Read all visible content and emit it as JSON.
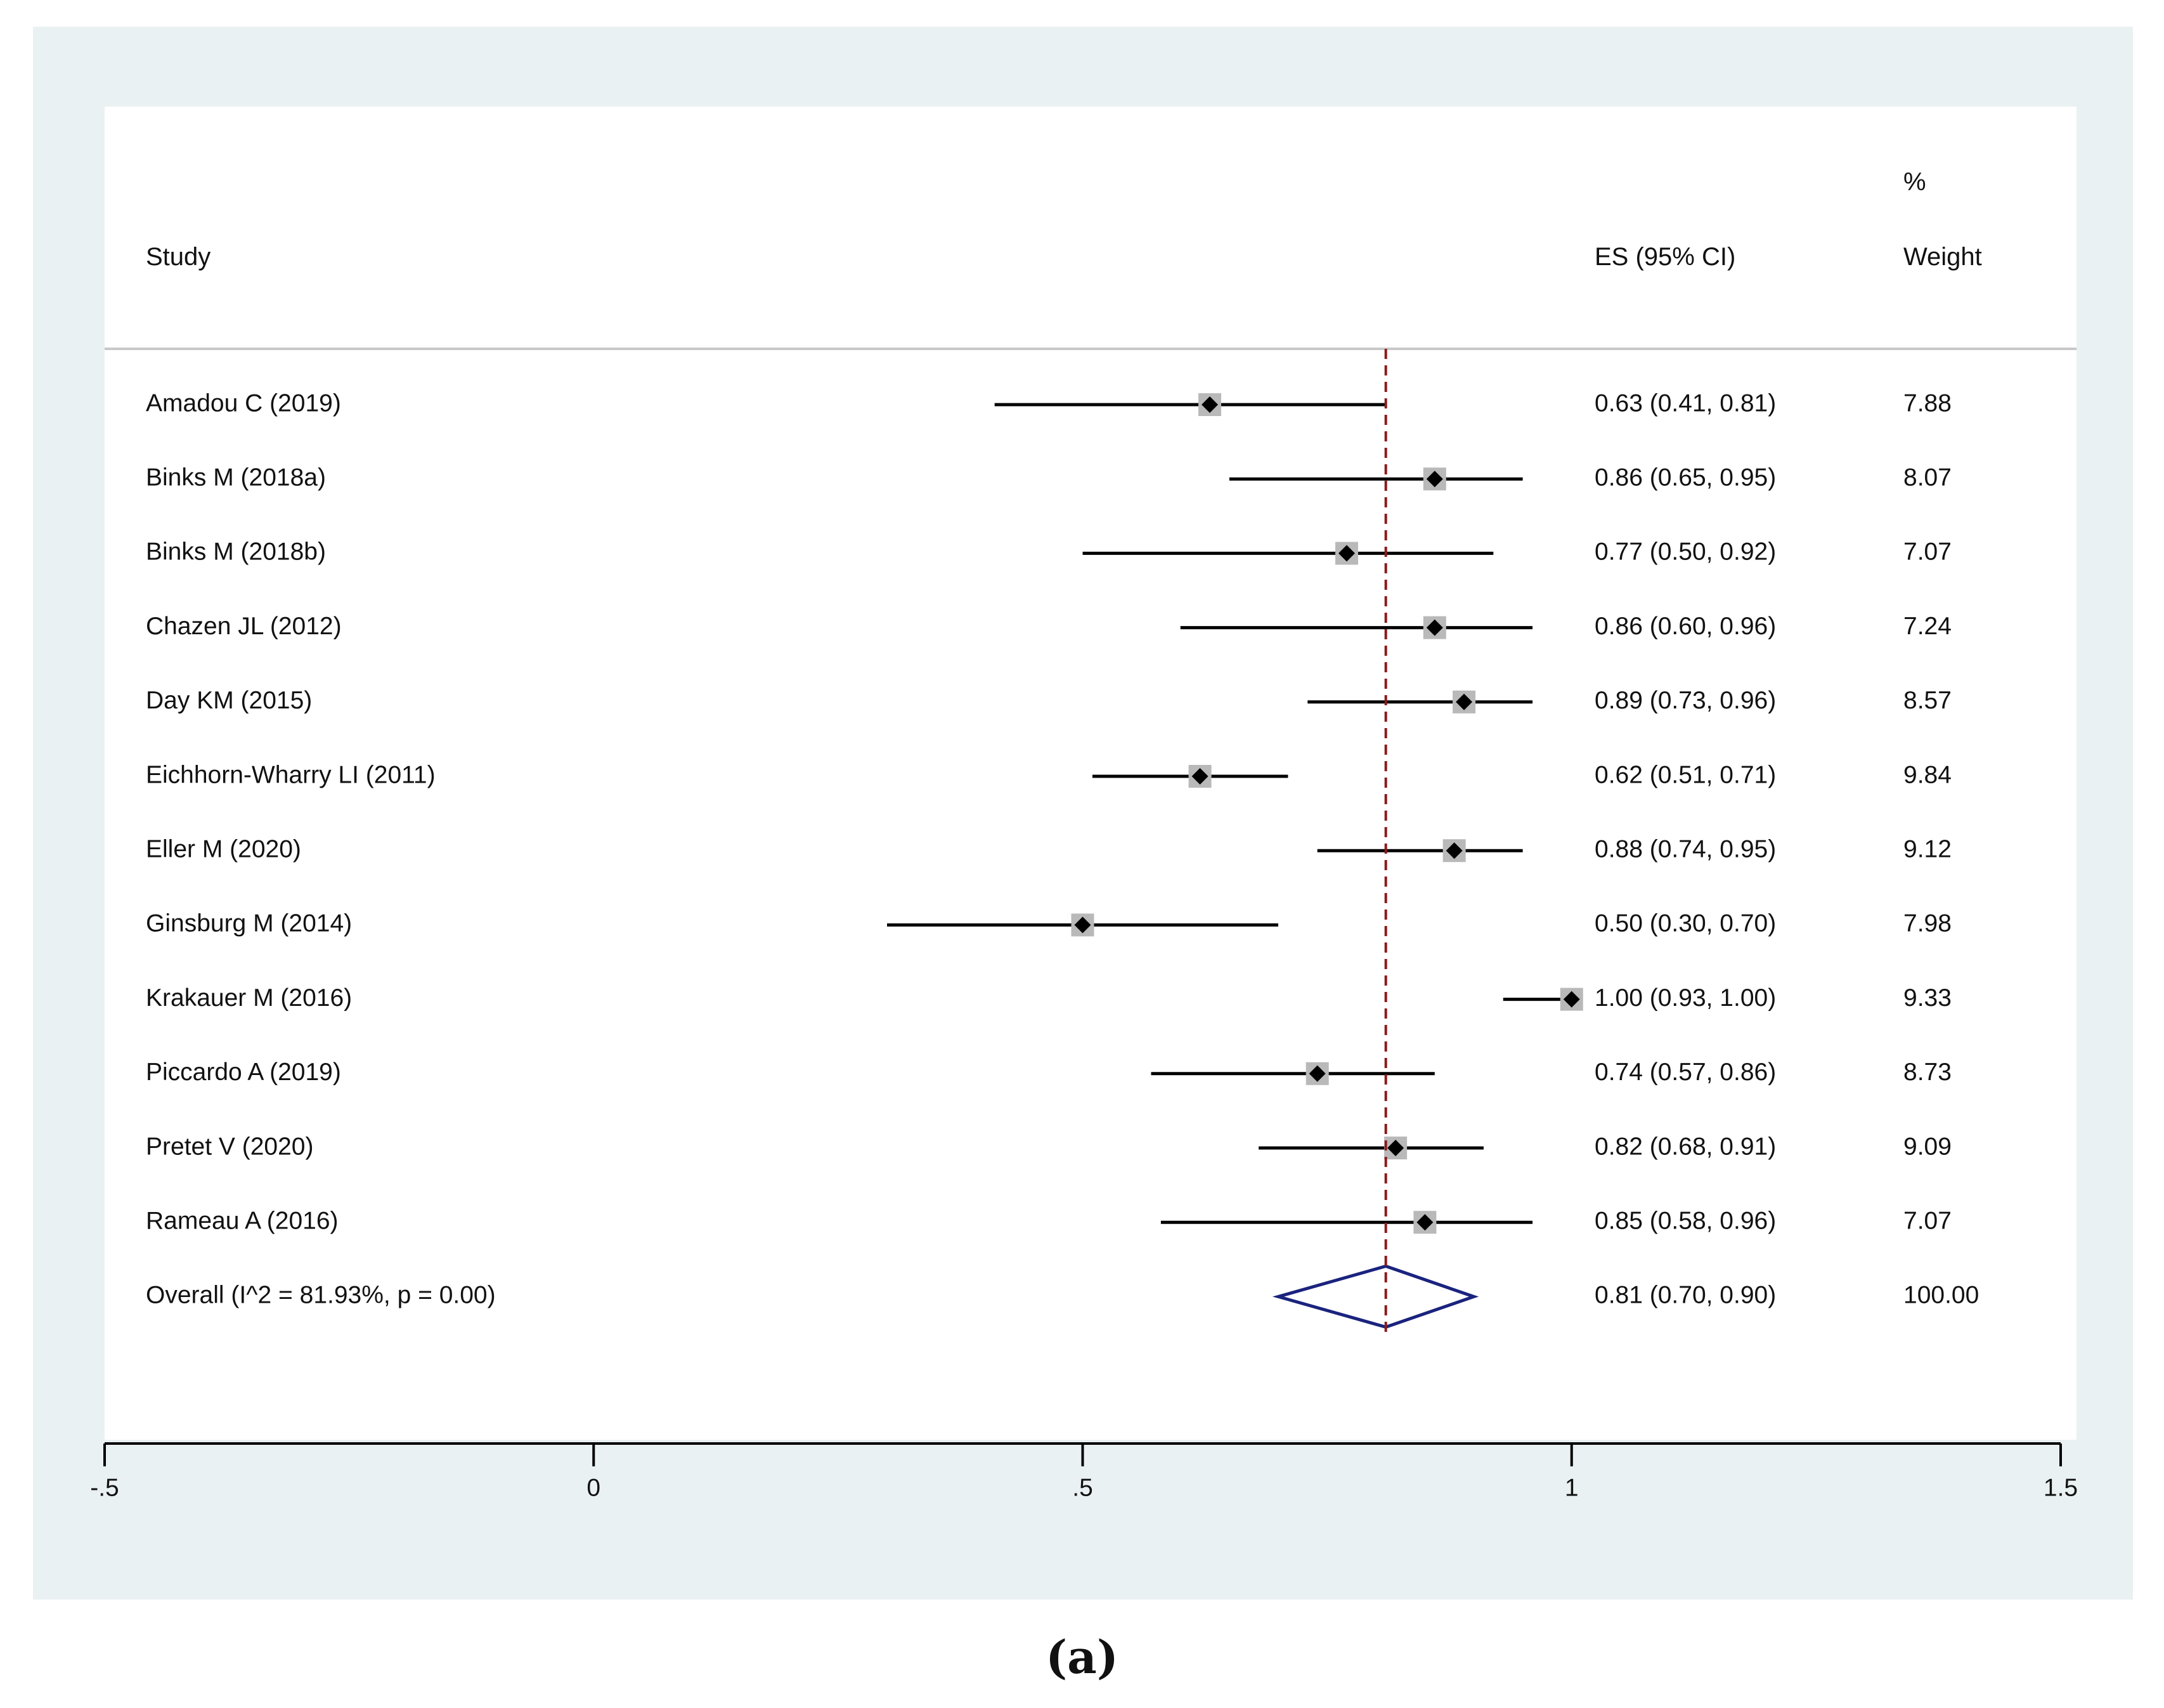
{
  "chart_data": {
    "type": "forest",
    "headers": {
      "study": "Study",
      "es": "ES (95% CI)",
      "weight_top": "%",
      "weight": "Weight"
    },
    "studies": [
      {
        "label": "Amadou C (2019)",
        "es": 0.63,
        "lo": 0.41,
        "hi": 0.81,
        "es_text": "0.63 (0.41, 0.81)",
        "weight": "7.88"
      },
      {
        "label": "Binks M (2018a)",
        "es": 0.86,
        "lo": 0.65,
        "hi": 0.95,
        "es_text": "0.86 (0.65, 0.95)",
        "weight": "8.07"
      },
      {
        "label": "Binks M (2018b)",
        "es": 0.77,
        "lo": 0.5,
        "hi": 0.92,
        "es_text": "0.77 (0.50, 0.92)",
        "weight": "7.07"
      },
      {
        "label": "Chazen JL (2012)",
        "es": 0.86,
        "lo": 0.6,
        "hi": 0.96,
        "es_text": "0.86 (0.60, 0.96)",
        "weight": "7.24"
      },
      {
        "label": "Day KM (2015)",
        "es": 0.89,
        "lo": 0.73,
        "hi": 0.96,
        "es_text": "0.89 (0.73, 0.96)",
        "weight": "8.57"
      },
      {
        "label": "Eichhorn-Wharry LI (2011)",
        "es": 0.62,
        "lo": 0.51,
        "hi": 0.71,
        "es_text": "0.62 (0.51, 0.71)",
        "weight": "9.84"
      },
      {
        "label": "Eller M (2020)",
        "es": 0.88,
        "lo": 0.74,
        "hi": 0.95,
        "es_text": "0.88 (0.74, 0.95)",
        "weight": "9.12"
      },
      {
        "label": "Ginsburg M (2014)",
        "es": 0.5,
        "lo": 0.3,
        "hi": 0.7,
        "es_text": "0.50 (0.30, 0.70)",
        "weight": "7.98"
      },
      {
        "label": "Krakauer M (2016)",
        "es": 1.0,
        "lo": 0.93,
        "hi": 1.0,
        "es_text": "1.00 (0.93, 1.00)",
        "weight": "9.33"
      },
      {
        "label": "Piccardo A (2019)",
        "es": 0.74,
        "lo": 0.57,
        "hi": 0.86,
        "es_text": "0.74 (0.57, 0.86)",
        "weight": "8.73"
      },
      {
        "label": "Pretet V (2020)",
        "es": 0.82,
        "lo": 0.68,
        "hi": 0.91,
        "es_text": "0.82 (0.68, 0.91)",
        "weight": "9.09"
      },
      {
        "label": "Rameau A (2016)",
        "es": 0.85,
        "lo": 0.58,
        "hi": 0.96,
        "es_text": "0.85 (0.58, 0.96)",
        "weight": "7.07"
      }
    ],
    "overall": {
      "label": "Overall  (I^2 = 81.93%, p = 0.00)",
      "es": 0.81,
      "lo": 0.7,
      "hi": 0.9,
      "es_text": "0.81 (0.70, 0.90)",
      "weight": "100.00"
    },
    "xlim": [
      -0.5,
      1.5
    ],
    "xticks": [
      -0.5,
      0,
      0.5,
      1,
      1.5
    ],
    "xtick_labels": [
      "-.5",
      "0",
      ".5",
      "1",
      "1.5"
    ],
    "reference_line": 0.81,
    "colors": {
      "ci_line": "#000000",
      "weight_box": "#b9b9b9",
      "point": "#000000",
      "overall_diamond": "#1a237e",
      "reference_line": "#8b1a1a",
      "background": "#eaf1f3"
    }
  },
  "caption": "(a)"
}
